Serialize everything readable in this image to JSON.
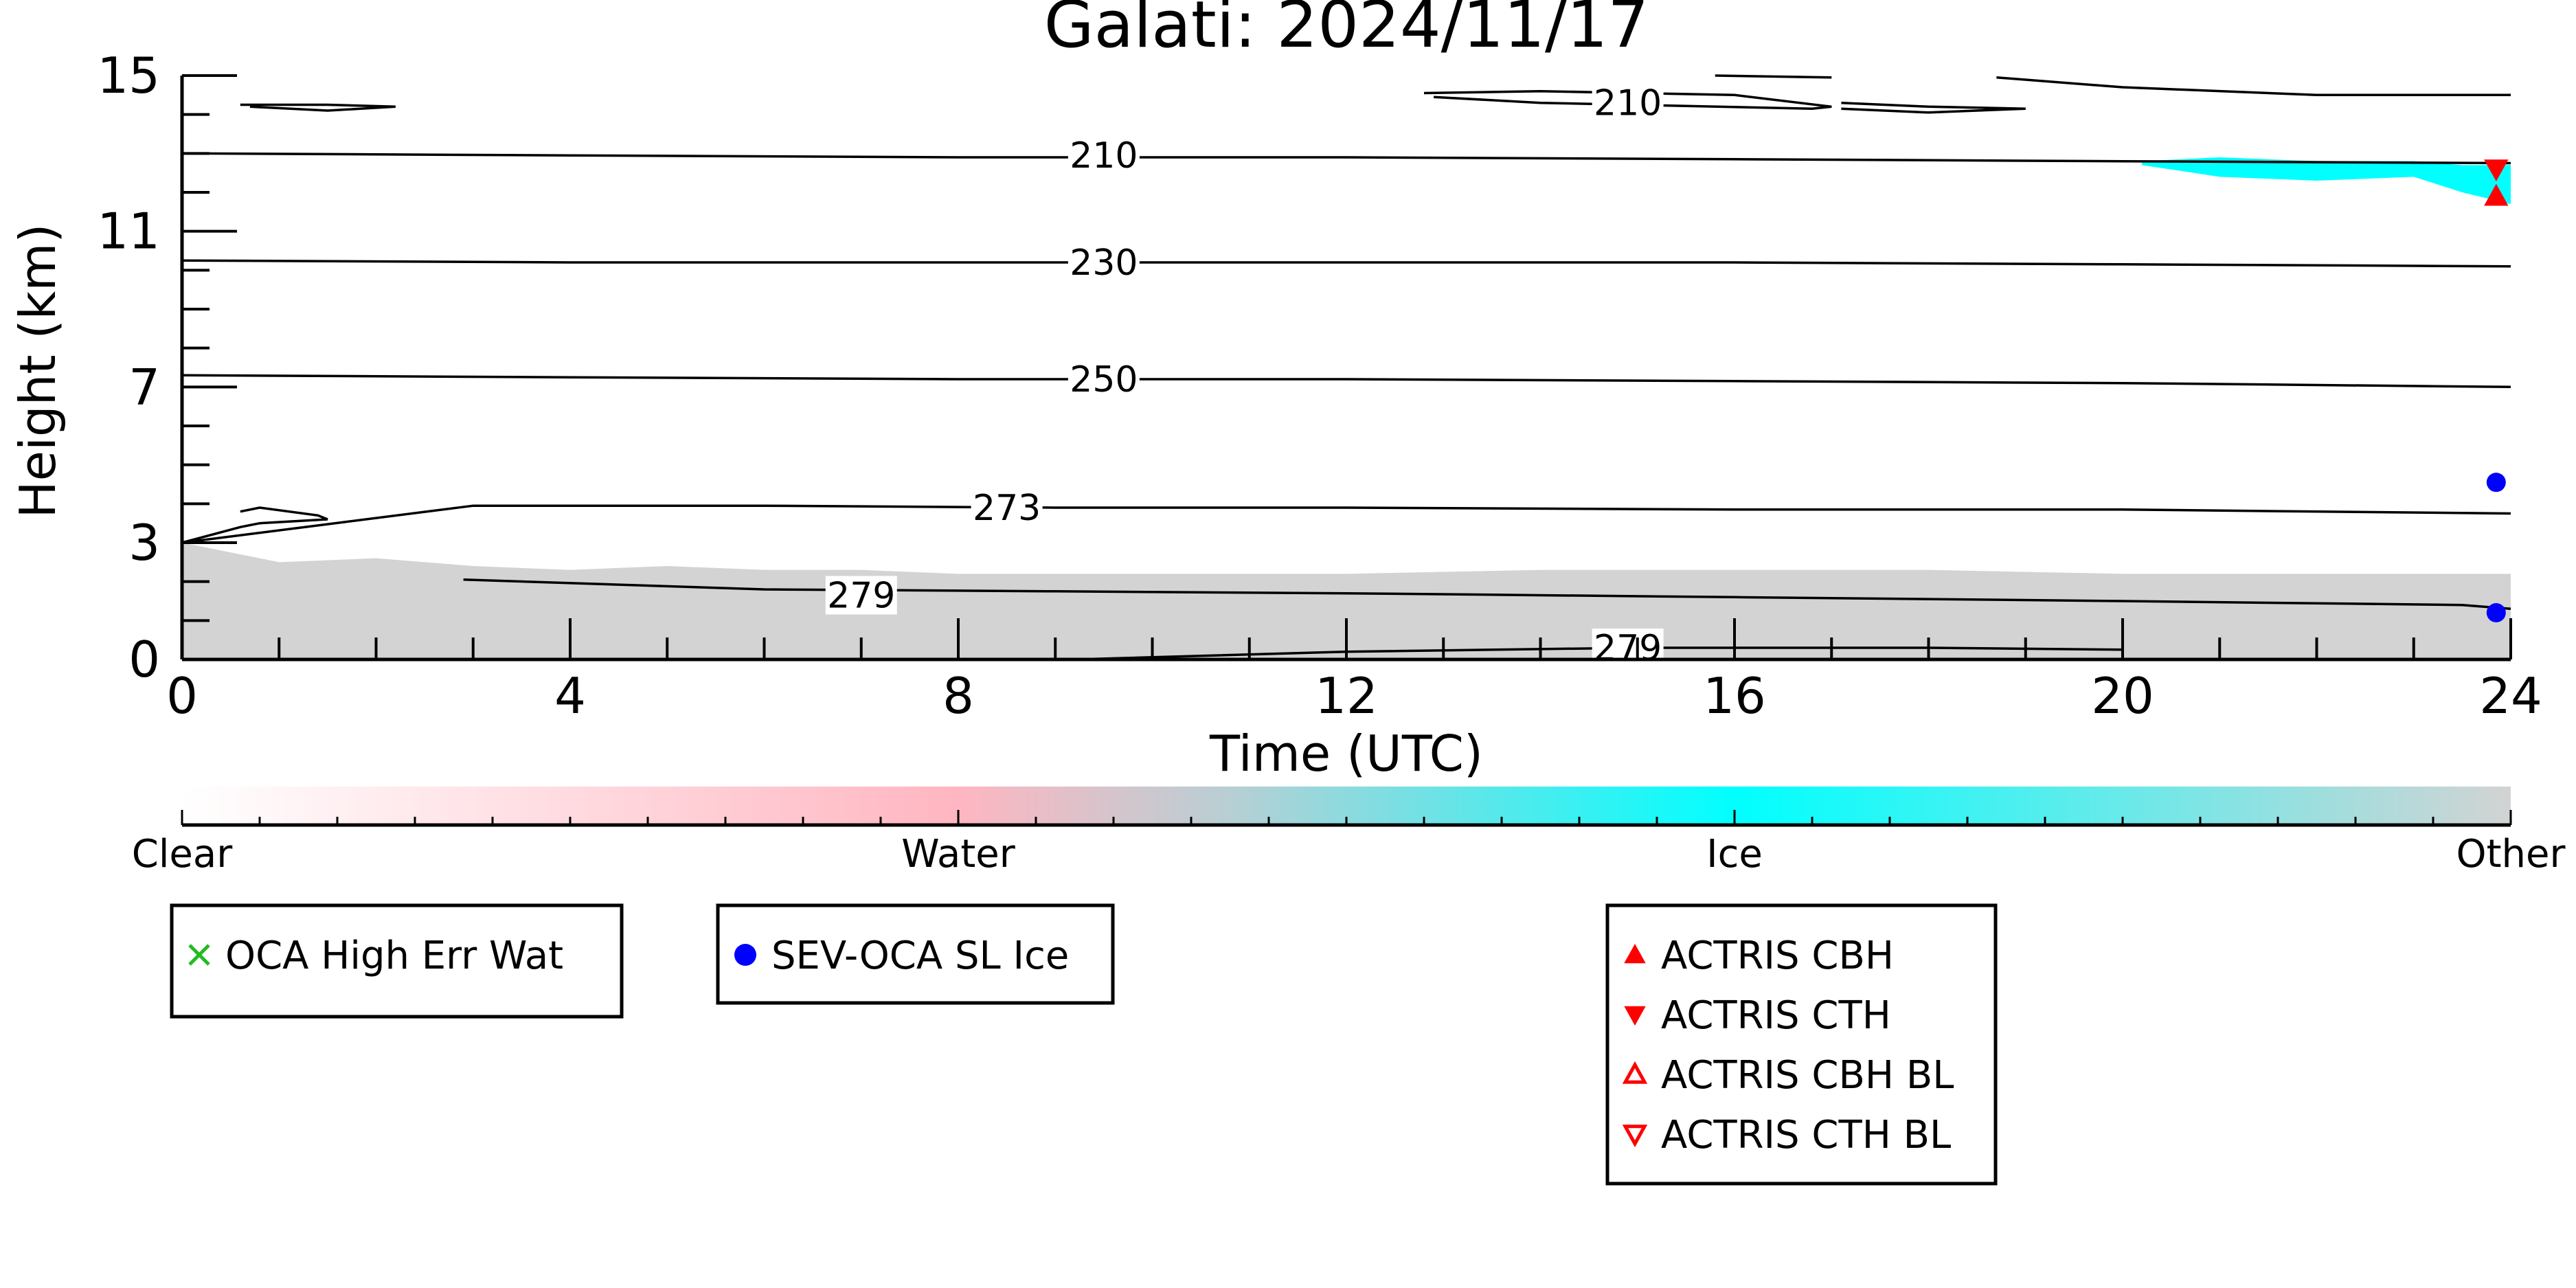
{
  "chart_data": {
    "type": "heatmap",
    "title": "Galati: 2024/11/17",
    "xlabel": "Time (UTC)",
    "ylabel": "Height (km)",
    "xlim": [
      0,
      24
    ],
    "ylim": [
      0,
      15
    ],
    "xticks": [
      0,
      4,
      8,
      12,
      16,
      20,
      24
    ],
    "yticks": [
      0,
      3,
      7,
      11,
      15
    ],
    "colorbar": {
      "labels": [
        "Clear",
        "Water",
        "Ice",
        "Other"
      ],
      "colors": [
        "#ffffff",
        "#ffb6c1",
        "#00ffff",
        "#d3d3d3"
      ]
    },
    "regions": [
      {
        "category": "Other",
        "color": "#d3d3d3",
        "x": [
          0,
          1,
          2,
          3,
          4,
          5,
          6,
          7,
          8,
          10,
          12,
          14,
          16,
          18,
          20,
          22,
          24
        ],
        "top": [
          3.0,
          2.5,
          2.6,
          2.4,
          2.3,
          2.4,
          2.3,
          2.3,
          2.2,
          2.2,
          2.2,
          2.3,
          2.3,
          2.3,
          2.2,
          2.2,
          2.2
        ]
      },
      {
        "category": "Ice",
        "color": "#00ffff",
        "x": [
          20.2,
          21,
          22,
          23,
          23.5,
          24
        ],
        "bottom": [
          12.7,
          12.4,
          12.3,
          12.4,
          12.0,
          11.7
        ],
        "top": [
          12.8,
          12.9,
          12.8,
          12.8,
          12.7,
          12.7
        ]
      }
    ],
    "contours": [
      {
        "label": "210",
        "label_at": [
          9.5,
          12.95
        ],
        "x": [
          0,
          4,
          8,
          12,
          16,
          20,
          24
        ],
        "y": [
          13.0,
          12.95,
          12.9,
          12.9,
          12.85,
          12.8,
          12.75
        ]
      },
      {
        "label": "230",
        "label_at": [
          9.5,
          10.2
        ],
        "x": [
          0,
          4,
          8,
          12,
          16,
          20,
          24
        ],
        "y": [
          10.25,
          10.2,
          10.2,
          10.2,
          10.2,
          10.15,
          10.1
        ]
      },
      {
        "label": "250",
        "label_at": [
          9.5,
          7.2
        ],
        "x": [
          0,
          4,
          8,
          12,
          16,
          20,
          24
        ],
        "y": [
          7.3,
          7.25,
          7.2,
          7.2,
          7.15,
          7.1,
          7.0
        ]
      },
      {
        "label": "273",
        "label_at": [
          8.5,
          3.9
        ],
        "x": [
          0.6,
          0.8,
          1.4,
          1.5,
          0.8,
          0.6,
          0,
          3,
          6,
          9,
          12,
          16,
          20,
          24
        ],
        "y": [
          3.8,
          3.9,
          3.7,
          3.6,
          3.5,
          3.4,
          3.0,
          3.95,
          3.95,
          3.9,
          3.9,
          3.85,
          3.85,
          3.75
        ]
      },
      {
        "label": "279",
        "label_at": [
          7.0,
          1.65
        ],
        "x": [
          2.9,
          6,
          9,
          12,
          16,
          20,
          23.5,
          24
        ],
        "y": [
          2.05,
          1.8,
          1.75,
          1.7,
          1.6,
          1.5,
          1.4,
          1.3
        ]
      },
      {
        "label": "279",
        "label_at": [
          14.9,
          0.3
        ],
        "x": [
          9.2,
          12,
          15,
          18,
          20
        ],
        "y": [
          0.0,
          0.2,
          0.3,
          0.3,
          0.25
        ]
      },
      {
        "label": "210",
        "label_at": [
          14.9,
          14.3
        ],
        "x": [
          12.8,
          14,
          16,
          17.0,
          16.8,
          14,
          12.9
        ],
        "y": [
          14.55,
          14.6,
          14.5,
          14.2,
          14.15,
          14.3,
          14.45
        ]
      },
      {
        "label": "",
        "x": [
          0.6,
          1.5,
          2.2,
          1.5,
          0.7
        ],
        "y": [
          14.25,
          14.25,
          14.2,
          14.1,
          14.2
        ]
      },
      {
        "label": "",
        "x": [
          17.1,
          18,
          19.0,
          18,
          17.1
        ],
        "y": [
          14.3,
          14.2,
          14.15,
          14.05,
          14.15
        ]
      },
      {
        "label": "",
        "x": [
          15.8,
          17.0
        ],
        "y": [
          15.0,
          14.95
        ]
      },
      {
        "label": "",
        "x": [
          18.7,
          20,
          22,
          24
        ],
        "y": [
          14.95,
          14.7,
          14.5,
          14.5
        ]
      }
    ],
    "markers": [
      {
        "series": "SEV-OCA SL Ice",
        "symbol": "circle",
        "color": "#0000ff",
        "points": [
          [
            23.85,
            1.2
          ],
          [
            23.85,
            4.55
          ]
        ]
      },
      {
        "series": "ACTRIS CBH",
        "symbol": "triangle-up",
        "color": "#ff0000",
        "points": [
          [
            23.85,
            11.9
          ]
        ]
      },
      {
        "series": "ACTRIS CTH",
        "symbol": "triangle-down",
        "color": "#ff0000",
        "points": [
          [
            23.85,
            12.6
          ]
        ]
      }
    ],
    "legends": [
      {
        "entries": [
          {
            "label": "OCA High Err Wat",
            "symbol": "x",
            "color": "#22bb22"
          }
        ]
      },
      {
        "entries": [
          {
            "label": "SEV-OCA SL Ice",
            "symbol": "circle",
            "color": "#0000ff"
          }
        ]
      },
      {
        "entries": [
          {
            "label": "ACTRIS CBH",
            "symbol": "triangle-up",
            "color": "#ff0000"
          },
          {
            "label": "ACTRIS CTH",
            "symbol": "triangle-down",
            "color": "#ff0000"
          },
          {
            "label": "ACTRIS CBH BL",
            "symbol": "triangle-up-open",
            "color": "#ff0000"
          },
          {
            "label": "ACTRIS CTH BL",
            "symbol": "triangle-down-open",
            "color": "#ff0000"
          }
        ]
      }
    ]
  }
}
